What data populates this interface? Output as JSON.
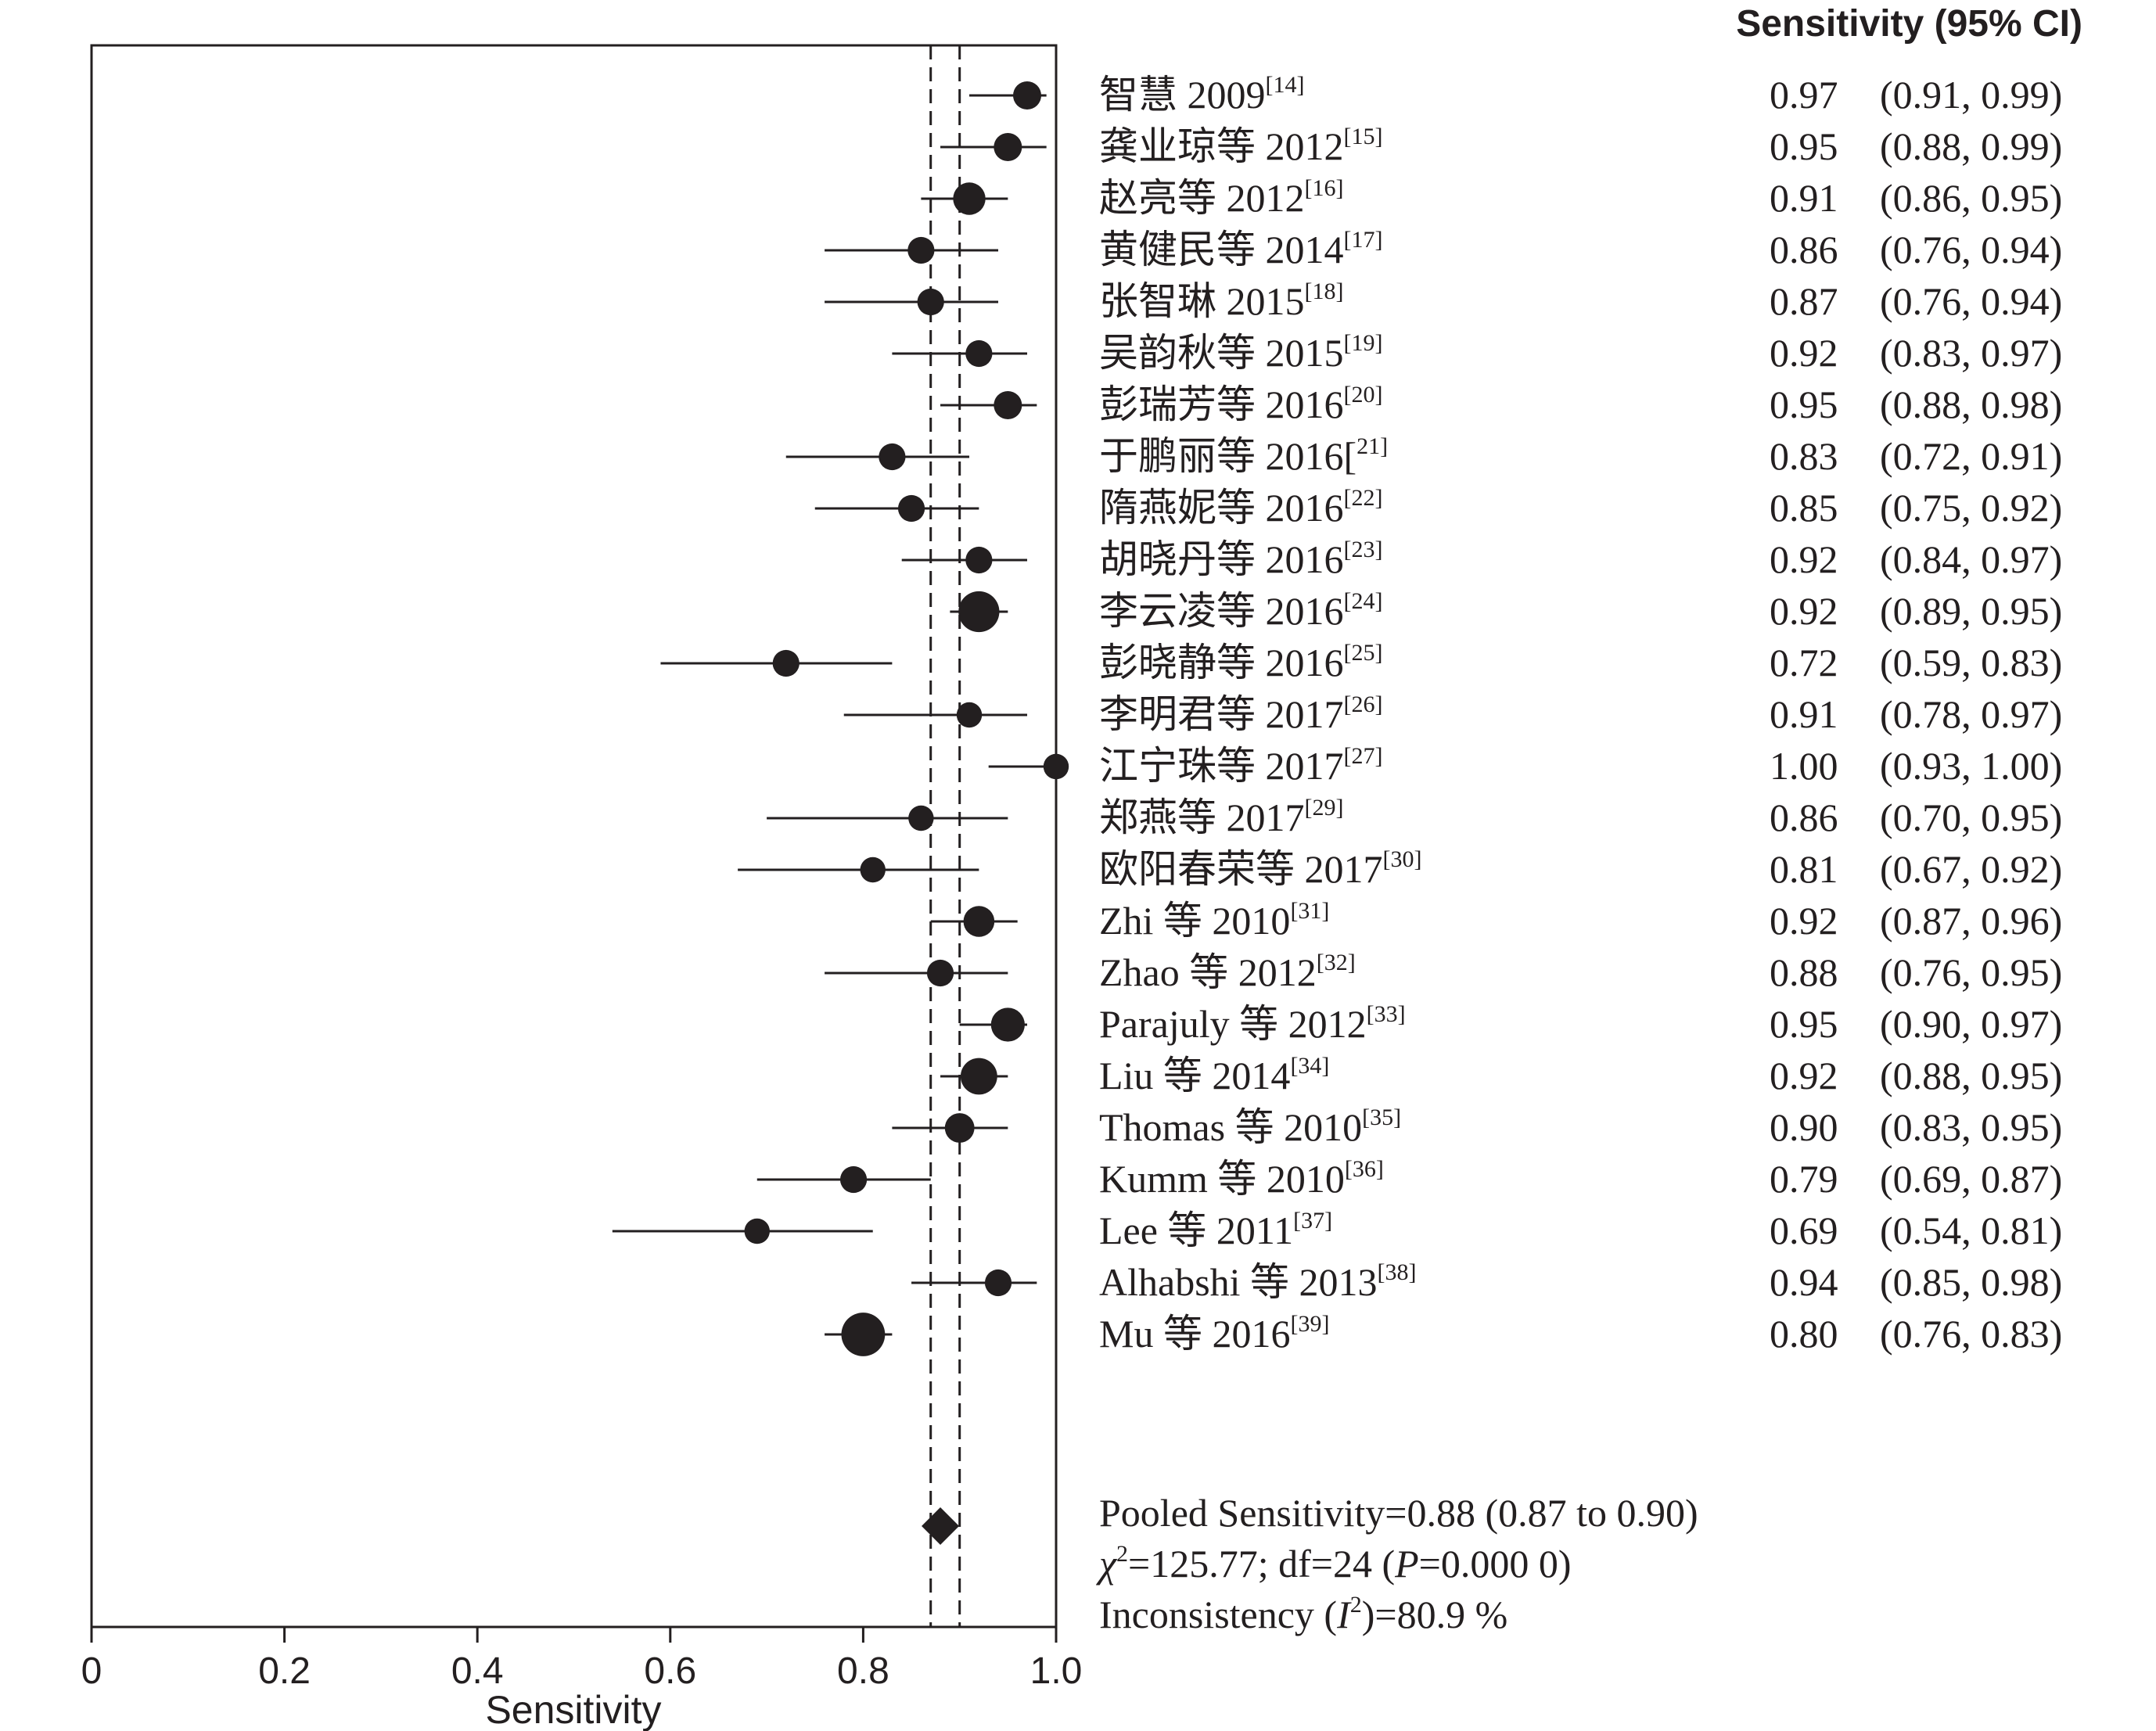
{
  "chart_data": {
    "type": "forest",
    "xlabel": "Sensitivity",
    "xlim": [
      0,
      1
    ],
    "x_ticks": [
      "0",
      "0.2",
      "0.4",
      "0.6",
      "0.8",
      "1.0"
    ],
    "header": "Sensitivity (95% CI)",
    "pooled": {
      "estimate": 0.88,
      "ci_low": 0.87,
      "ci_high": 0.9
    },
    "summary_lines": [
      {
        "parts": [
          {
            "text": "Pooled Sensitivity=0.88 (0.87 to 0.90)"
          }
        ]
      },
      {
        "parts": [
          {
            "text": "χ",
            "italic": true
          },
          {
            "text": "2",
            "sup": true
          },
          {
            "text": "=125.77; df=24 ("
          },
          {
            "text": "P",
            "italic": true
          },
          {
            "text": "=0.000 0)"
          }
        ]
      },
      {
        "parts": [
          {
            "text": "Inconsistency ("
          },
          {
            "text": "I",
            "italic": true
          },
          {
            "text": "2",
            "sup": true
          },
          {
            "text": ")=80.9 %"
          }
        ]
      }
    ],
    "studies": [
      {
        "name": "智慧 2009",
        "ref": "[14]",
        "est": 0.97,
        "low": 0.91,
        "high": 0.99,
        "est_text": "0.97",
        "ci_text": "(0.91, 0.99)",
        "weight": 1.0
      },
      {
        "name": "龚业琼等 2012",
        "ref": "[15]",
        "est": 0.95,
        "low": 0.88,
        "high": 0.99,
        "est_text": "0.95",
        "ci_text": "(0.88, 0.99)",
        "weight": 1.0
      },
      {
        "name": "赵亮等 2012",
        "ref": "[16]",
        "est": 0.91,
        "low": 0.86,
        "high": 0.95,
        "est_text": "0.91",
        "ci_text": "(0.86, 0.95)",
        "weight": 1.15
      },
      {
        "name": "黄健民等 2014",
        "ref": "[17]",
        "est": 0.86,
        "low": 0.76,
        "high": 0.94,
        "est_text": "0.86",
        "ci_text": "(0.76, 0.94)",
        "weight": 0.95
      },
      {
        "name": "张智琳 2015",
        "ref": "[18]",
        "est": 0.87,
        "low": 0.76,
        "high": 0.94,
        "est_text": "0.87",
        "ci_text": "(0.76, 0.94)",
        "weight": 0.95
      },
      {
        "name": "吴韵秋等 2015",
        "ref": "[19]",
        "est": 0.92,
        "low": 0.83,
        "high": 0.97,
        "est_text": "0.92",
        "ci_text": "(0.83, 0.97)",
        "weight": 0.95
      },
      {
        "name": "彭瑞芳等 2016",
        "ref": "[20]",
        "est": 0.95,
        "low": 0.88,
        "high": 0.98,
        "est_text": "0.95",
        "ci_text": "(0.88, 0.98)",
        "weight": 1.0
      },
      {
        "name": "于鹏丽等 2016[",
        "ref": "21]",
        "est": 0.83,
        "low": 0.72,
        "high": 0.91,
        "est_text": "0.83",
        "ci_text": "(0.72, 0.91)",
        "weight": 0.95
      },
      {
        "name": "隋燕妮等 2016",
        "ref": "[22]",
        "est": 0.85,
        "low": 0.75,
        "high": 0.92,
        "est_text": "0.85",
        "ci_text": "(0.75, 0.92)",
        "weight": 0.95
      },
      {
        "name": "胡晓丹等 2016",
        "ref": "[23]",
        "est": 0.92,
        "low": 0.84,
        "high": 0.97,
        "est_text": "0.92",
        "ci_text": "(0.84, 0.97)",
        "weight": 0.95
      },
      {
        "name": "李云凌等 2016",
        "ref": "[24]",
        "est": 0.92,
        "low": 0.89,
        "high": 0.95,
        "est_text": "0.92",
        "ci_text": "(0.89, 0.95)",
        "weight": 1.45
      },
      {
        "name": "彭晓静等 2016",
        "ref": "[25]",
        "est": 0.72,
        "low": 0.59,
        "high": 0.83,
        "est_text": "0.72",
        "ci_text": "(0.59, 0.83)",
        "weight": 0.95
      },
      {
        "name": "李明君等 2017",
        "ref": "[26]",
        "est": 0.91,
        "low": 0.78,
        "high": 0.97,
        "est_text": "0.91",
        "ci_text": "(0.78, 0.97)",
        "weight": 0.9
      },
      {
        "name": "江宁珠等 2017",
        "ref": "[27]",
        "est": 1.0,
        "low": 0.93,
        "high": 1.0,
        "est_text": "1.00",
        "ci_text": "(0.93, 1.00)",
        "weight": 0.9
      },
      {
        "name": "郑燕等 2017",
        "ref": "[29]",
        "est": 0.86,
        "low": 0.7,
        "high": 0.95,
        "est_text": "0.86",
        "ci_text": "(0.70, 0.95)",
        "weight": 0.9
      },
      {
        "name": "欧阳春荣等 2017",
        "ref": "[30]",
        "est": 0.81,
        "low": 0.67,
        "high": 0.92,
        "est_text": "0.81",
        "ci_text": "(0.67, 0.92)",
        "weight": 0.9
      },
      {
        "name": "Zhi 等 2010",
        "ref": "[31]",
        "est": 0.92,
        "low": 0.87,
        "high": 0.96,
        "est_text": "0.92",
        "ci_text": "(0.87, 0.96)",
        "weight": 1.1
      },
      {
        "name": "Zhao 等 2012",
        "ref": "[32]",
        "est": 0.88,
        "low": 0.76,
        "high": 0.95,
        "est_text": "0.88",
        "ci_text": "(0.76, 0.95)",
        "weight": 0.95
      },
      {
        "name": "Parajuly 等 2012",
        "ref": "[33]",
        "est": 0.95,
        "low": 0.9,
        "high": 0.97,
        "est_text": "0.95",
        "ci_text": "(0.90, 0.97)",
        "weight": 1.2
      },
      {
        "name": "Liu 等 2014",
        "ref": "[34]",
        "est": 0.92,
        "low": 0.88,
        "high": 0.95,
        "est_text": "0.92",
        "ci_text": "(0.88, 0.95)",
        "weight": 1.3
      },
      {
        "name": "Thomas 等 2010",
        "ref": "[35]",
        "est": 0.9,
        "low": 0.83,
        "high": 0.95,
        "est_text": "0.90",
        "ci_text": "(0.83, 0.95)",
        "weight": 1.05
      },
      {
        "name": "Kumm 等 2010",
        "ref": "[36]",
        "est": 0.79,
        "low": 0.69,
        "high": 0.87,
        "est_text": "0.79",
        "ci_text": "(0.69, 0.87)",
        "weight": 0.95
      },
      {
        "name": "Lee 等 2011",
        "ref": "[37]",
        "est": 0.69,
        "low": 0.54,
        "high": 0.81,
        "est_text": "0.69",
        "ci_text": "(0.54, 0.81)",
        "weight": 0.9
      },
      {
        "name": "Alhabshi 等 2013",
        "ref": "[38]",
        "est": 0.94,
        "low": 0.85,
        "high": 0.98,
        "est_text": "0.94",
        "ci_text": "(0.85, 0.98)",
        "weight": 0.95
      },
      {
        "name": "Mu 等 2016",
        "ref": "[39]",
        "est": 0.8,
        "low": 0.76,
        "high": 0.83,
        "est_text": "0.80",
        "ci_text": "(0.76, 0.83)",
        "weight": 1.55
      }
    ]
  }
}
